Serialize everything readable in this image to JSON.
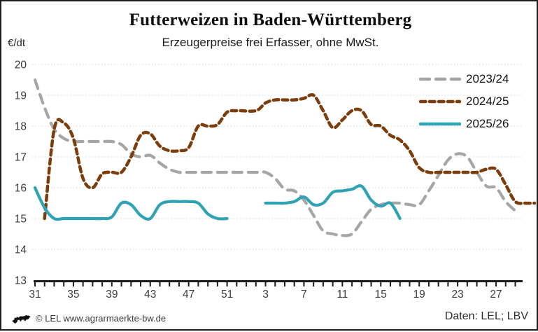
{
  "header": {
    "title": "Futterweizen in Baden-Württemberg",
    "subtitle": "Erzeugerpreise frei Erfasser, ohne MwSt.",
    "y_unit": "€/dt"
  },
  "footer": {
    "copyright": "© LEL www.agrarmaerkte-bw.de",
    "source": "Daten: LEL; LBV",
    "logo_icon": "bw-lion-icon"
  },
  "colors": {
    "series_2023_24": "#a6a6a6",
    "series_2024_25": "#7b3d0c",
    "series_2025_26": "#2fa2b4",
    "axis": "#1c1c1c",
    "grid": "#d9d9d9",
    "tick_text": "#3c3c3c"
  },
  "chart_data": {
    "type": "line",
    "title": "Futterweizen in Baden-Württemberg",
    "subtitle": "Erzeugerpreise frei Erfasser, ohne MwSt.",
    "ylabel": "€/dt",
    "ylim": [
      13,
      20
    ],
    "yticks": [
      13,
      14,
      15,
      16,
      17,
      18,
      19,
      20
    ],
    "x_tick_labels": [
      "31",
      "35",
      "39",
      "43",
      "47",
      "51",
      "3",
      "7",
      "11",
      "15",
      "19",
      "23",
      "27"
    ],
    "x_domain": "calendar weeks 31..52 then 1..30",
    "grid": "horizontal dotted",
    "legend_position": "top-right-inside",
    "series": [
      {
        "name": "2023/24",
        "color": "#a6a6a6",
        "line_style": "dashed-long",
        "segments": [
          {
            "weeks": [
              31,
              32,
              33,
              34,
              35,
              36,
              37,
              38,
              39,
              40,
              41,
              42,
              43,
              44,
              45,
              46,
              47,
              48,
              49,
              50,
              51,
              52,
              1,
              2,
              3,
              4,
              5,
              6,
              7,
              8,
              9,
              10,
              11,
              12,
              13,
              14,
              15,
              16,
              17,
              18,
              19,
              20,
              21,
              22,
              23,
              24,
              25,
              26,
              27,
              28
            ],
            "values": [
              19.5,
              18.6,
              17.9,
              17.6,
              17.5,
              17.5,
              17.5,
              17.5,
              17.5,
              17.4,
              17.1,
              17.0,
              17.05,
              16.8,
              16.6,
              16.5,
              16.5,
              16.5,
              16.5,
              16.5,
              16.5,
              16.5,
              16.5,
              16.5,
              16.3,
              15.95,
              15.9,
              15.6,
              15.1,
              14.6,
              14.5,
              14.45,
              14.5,
              14.9,
              15.3,
              15.45,
              15.5,
              15.5,
              15.45,
              15.45,
              15.9,
              16.4,
              16.9,
              17.1,
              17.0,
              16.5,
              16.05,
              16.0,
              15.55,
              15.25
            ]
          }
        ]
      },
      {
        "name": "2024/25",
        "color": "#7b3d0c",
        "line_style": "dashed-short",
        "segments": [
          {
            "weeks": [
              32,
              33,
              34,
              35,
              36,
              37,
              38,
              39,
              40,
              41,
              42,
              43,
              44,
              45,
              46,
              47,
              48,
              49,
              50,
              51,
              52,
              1,
              2,
              3,
              4,
              5,
              6,
              7,
              8,
              9,
              10,
              11,
              12,
              13,
              14,
              15,
              16,
              17,
              18,
              19,
              20,
              21,
              22,
              23,
              24,
              25,
              26,
              27,
              28,
              29,
              30
            ],
            "values": [
              15.0,
              17.9,
              18.1,
              17.6,
              16.3,
              16.0,
              16.45,
              16.5,
              16.5,
              17.0,
              17.7,
              17.75,
              17.35,
              17.2,
              17.2,
              17.3,
              18.0,
              18.0,
              18.05,
              18.45,
              18.5,
              18.5,
              18.75,
              18.85,
              18.85,
              18.85,
              18.9,
              19.0,
              18.5,
              17.95,
              18.2,
              18.5,
              18.5,
              18.05,
              18.0,
              17.7,
              17.55,
              17.2,
              16.65,
              16.5,
              16.5,
              16.5,
              16.5,
              16.5,
              16.5,
              16.6,
              16.6,
              16.1,
              15.55,
              15.5,
              15.5
            ]
          }
        ]
      },
      {
        "name": "2025/26",
        "color": "#2fa2b4",
        "line_style": "solid",
        "segments": [
          {
            "weeks": [
              31,
              32,
              33,
              34,
              35,
              36,
              37,
              38,
              39,
              40,
              41,
              42,
              43,
              44,
              45,
              46,
              47,
              48,
              49,
              50,
              51
            ],
            "values": [
              16.0,
              15.35,
              15.0,
              15.0,
              15.0,
              15.0,
              15.0,
              15.0,
              15.05,
              15.5,
              15.45,
              15.1,
              15.0,
              15.45,
              15.55,
              15.55,
              15.55,
              15.5,
              15.15,
              15.0,
              15.0
            ]
          },
          {
            "weeks": [
              2,
              3,
              4,
              5,
              6,
              7,
              8,
              9,
              10,
              11,
              12,
              13,
              14,
              15,
              16
            ],
            "values": [
              15.5,
              15.5,
              15.5,
              15.55,
              15.7,
              15.45,
              15.5,
              15.85,
              15.9,
              15.95,
              16.05,
              15.6,
              15.4,
              15.5,
              15.0
            ]
          }
        ]
      }
    ]
  }
}
